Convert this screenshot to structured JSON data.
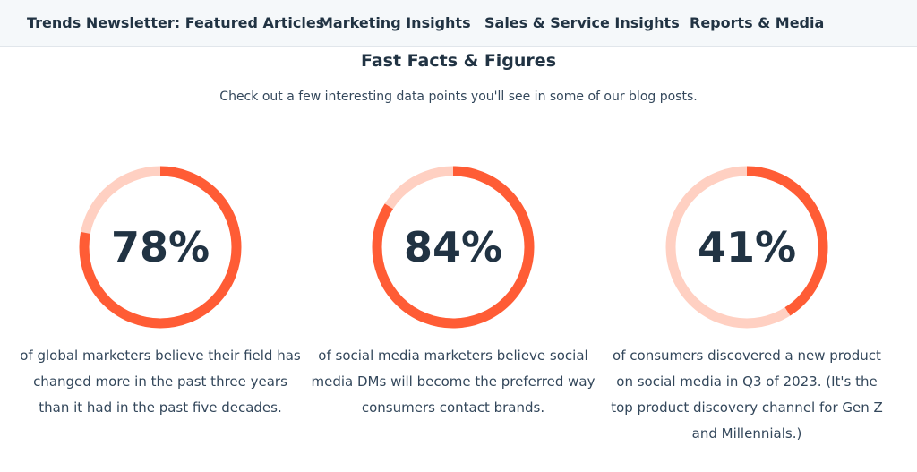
{
  "nav": {
    "items": [
      {
        "label": "Trends Newsletter: Featured Articles"
      },
      {
        "label": "Marketing Insights"
      },
      {
        "label": "Sales & Service Insights"
      },
      {
        "label": "Reports & Media"
      }
    ]
  },
  "section": {
    "title": "Fast Facts & Figures",
    "subtitle": "Check out a few interesting data points you'll see in some of our blog posts."
  },
  "colors": {
    "accent": "#ff5c35",
    "accent_light": "#ffd0c2",
    "text_dark": "#213343"
  },
  "stats": [
    {
      "percent_label": "78%",
      "value": 78,
      "description": "of global marketers believe their field has changed more in the past three years than it had in the past five decades."
    },
    {
      "percent_label": "84%",
      "value": 84,
      "description": "of social media marketers believe social media DMs will become the preferred way consumers contact brands."
    },
    {
      "percent_label": "41%",
      "value": 41,
      "description": "of consumers discovered a new product on social media in Q3 of 2023. (It's the top product discovery channel for Gen Z and Millennials.)"
    }
  ]
}
